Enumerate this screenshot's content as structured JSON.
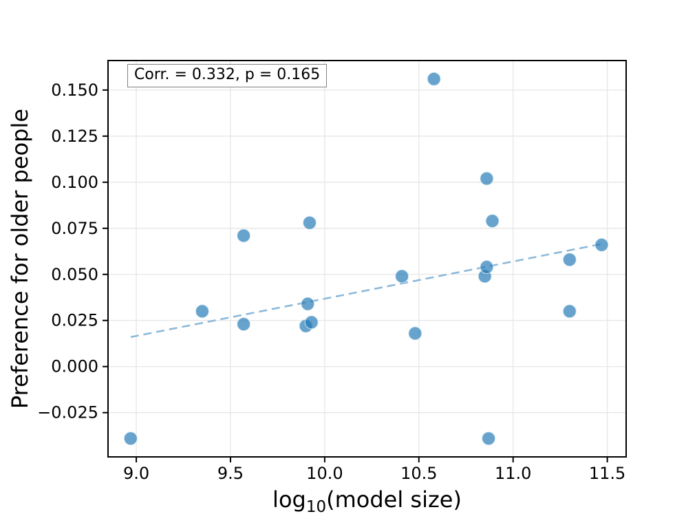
{
  "figure": {
    "background": "#ffffff"
  },
  "chart_data": {
    "type": "scatter",
    "title": "",
    "annotation": "Corr. = 0.332, p = 0.165",
    "xlabel": {
      "prefix": "log",
      "subscript": "10",
      "suffix": "(model size)"
    },
    "ylabel": "Preference for older people",
    "xlim": [
      8.85,
      11.6
    ],
    "ylim": [
      -0.049,
      0.166
    ],
    "xticks": [
      9.0,
      9.5,
      10.0,
      10.5,
      11.0,
      11.5
    ],
    "xtick_labels": [
      "9.0",
      "9.5",
      "10.0",
      "10.5",
      "11.0",
      "11.5"
    ],
    "yticks": [
      -0.025,
      0.0,
      0.025,
      0.05,
      0.075,
      0.1,
      0.125,
      0.15
    ],
    "ytick_labels": [
      "−0.025",
      "0.000",
      "0.025",
      "0.050",
      "0.075",
      "0.100",
      "0.125",
      "0.150"
    ],
    "grid": true,
    "legend": "none",
    "series": [
      {
        "name": "models",
        "points": [
          [
            8.97,
            -0.039
          ],
          [
            9.35,
            0.03
          ],
          [
            9.57,
            0.071
          ],
          [
            9.57,
            0.023
          ],
          [
            9.9,
            0.022
          ],
          [
            9.91,
            0.034
          ],
          [
            9.92,
            0.078
          ],
          [
            9.93,
            0.024
          ],
          [
            10.41,
            0.049
          ],
          [
            10.48,
            0.018
          ],
          [
            10.58,
            0.156
          ],
          [
            10.85,
            0.049
          ],
          [
            10.86,
            0.054
          ],
          [
            10.86,
            0.102
          ],
          [
            10.87,
            -0.039
          ],
          [
            10.89,
            0.079
          ],
          [
            11.3,
            0.058
          ],
          [
            11.3,
            0.03
          ],
          [
            11.47,
            0.066
          ]
        ]
      }
    ],
    "trend_line": {
      "x1": 8.97,
      "y1": 0.016,
      "x2": 11.47,
      "y2": 0.0665,
      "style": "dashed"
    },
    "colors": {
      "marker": "#1f77b4",
      "trend": "#8cb9da",
      "grid": "#e6e6e6",
      "spine": "#000000",
      "text": "#000000"
    }
  }
}
